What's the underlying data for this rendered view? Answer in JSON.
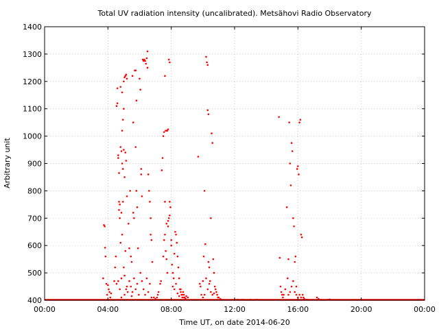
{
  "chart_data": {
    "type": "scatter",
    "title": "Total UV radiation intensity (uncalibrated). Metsähovi Radio Observatory",
    "xlabel": "Time UT, on date 2014-06-20",
    "ylabel": "Arbitrary unit",
    "xlim": [
      0,
      24
    ],
    "ylim": [
      400,
      1400
    ],
    "xticks": [
      0,
      4,
      8,
      12,
      16,
      20,
      24
    ],
    "xtick_labels": [
      "00:00",
      "04:00",
      "08:00",
      "12:00",
      "16:00",
      "20:00",
      "00:00"
    ],
    "yticks": [
      400,
      500,
      600,
      700,
      800,
      900,
      1000,
      1100,
      1200,
      1300,
      1400
    ],
    "ytick_labels": [
      "400",
      "500",
      "600",
      "700",
      "800",
      "900",
      "1000",
      "1100",
      "1200",
      "1300",
      "1400"
    ],
    "grid": true,
    "legend": false,
    "marker_color": "#ff0000",
    "baseline": {
      "value": 400,
      "x_range": [
        0,
        24
      ]
    },
    "points": [
      [
        3.75,
        675
      ],
      [
        3.8,
        670
      ],
      [
        3.82,
        592
      ],
      [
        3.85,
        560
      ],
      [
        3.7,
        480
      ],
      [
        3.9,
        460
      ],
      [
        4.0,
        455
      ],
      [
        4.05,
        440
      ],
      [
        4.1,
        430
      ],
      [
        4.2,
        425
      ],
      [
        3.95,
        420
      ],
      [
        4.15,
        410
      ],
      [
        4.4,
        470
      ],
      [
        4.45,
        520
      ],
      [
        4.5,
        560
      ],
      [
        4.55,
        1110
      ],
      [
        4.6,
        1120
      ],
      [
        4.6,
        1175
      ],
      [
        4.65,
        930
      ],
      [
        4.65,
        920
      ],
      [
        4.7,
        865
      ],
      [
        4.7,
        760
      ],
      [
        4.7,
        730
      ],
      [
        4.75,
        750
      ],
      [
        4.75,
        700
      ],
      [
        4.8,
        1180
      ],
      [
        4.8,
        960
      ],
      [
        4.8,
        610
      ],
      [
        4.85,
        945
      ],
      [
        4.85,
        720
      ],
      [
        4.9,
        1160
      ],
      [
        4.9,
        1020
      ],
      [
        4.9,
        900
      ],
      [
        4.9,
        640
      ],
      [
        4.95,
        1060
      ],
      [
        4.95,
        880
      ],
      [
        4.95,
        760
      ],
      [
        5.0,
        1200
      ],
      [
        5.0,
        1100
      ],
      [
        5.0,
        950
      ],
      [
        5.0,
        520
      ],
      [
        5.05,
        1215
      ],
      [
        5.05,
        850
      ],
      [
        5.05,
        490
      ],
      [
        5.1,
        1220
      ],
      [
        5.1,
        940
      ],
      [
        5.1,
        580
      ],
      [
        5.15,
        1225
      ],
      [
        5.15,
        910
      ],
      [
        5.2,
        1210
      ],
      [
        5.2,
        780
      ],
      [
        5.2,
        450
      ],
      [
        5.3,
        680
      ],
      [
        5.35,
        590
      ],
      [
        5.4,
        800
      ],
      [
        5.45,
        560
      ],
      [
        5.5,
        540
      ],
      [
        5.55,
        1220
      ],
      [
        5.6,
        1050
      ],
      [
        5.6,
        720
      ],
      [
        5.65,
        700
      ],
      [
        5.7,
        1240
      ],
      [
        5.75,
        1240
      ],
      [
        5.75,
        960
      ],
      [
        5.8,
        1130
      ],
      [
        5.8,
        800
      ],
      [
        5.85,
        740
      ],
      [
        5.9,
        590
      ],
      [
        6.0,
        1210
      ],
      [
        6.05,
        1170
      ],
      [
        6.1,
        880
      ],
      [
        6.1,
        860
      ],
      [
        6.15,
        780
      ],
      [
        6.2,
        1280
      ],
      [
        6.25,
        1275
      ],
      [
        6.3,
        1280
      ],
      [
        6.35,
        1275
      ],
      [
        6.4,
        1265
      ],
      [
        6.45,
        1285
      ],
      [
        6.5,
        1310
      ],
      [
        6.5,
        1250
      ],
      [
        6.55,
        860
      ],
      [
        6.6,
        800
      ],
      [
        6.65,
        760
      ],
      [
        6.7,
        700
      ],
      [
        6.7,
        640
      ],
      [
        6.75,
        620
      ],
      [
        6.8,
        540
      ],
      [
        4.55,
        460
      ],
      [
        4.65,
        470
      ],
      [
        4.75,
        440
      ],
      [
        4.85,
        480
      ],
      [
        5.05,
        420
      ],
      [
        5.25,
        430
      ],
      [
        5.35,
        470
      ],
      [
        5.45,
        450
      ],
      [
        5.55,
        430
      ],
      [
        5.65,
        480
      ],
      [
        5.75,
        440
      ],
      [
        5.85,
        460
      ],
      [
        5.95,
        420
      ],
      [
        6.05,
        500
      ],
      [
        6.15,
        470
      ],
      [
        6.25,
        440
      ],
      [
        6.35,
        420
      ],
      [
        6.45,
        480
      ],
      [
        6.55,
        430
      ],
      [
        6.65,
        460
      ],
      [
        6.75,
        410
      ],
      [
        4.85,
        410
      ],
      [
        5.15,
        440
      ],
      [
        5.5,
        415
      ],
      [
        6.9,
        410
      ],
      [
        7.0,
        405
      ],
      [
        7.1,
        410
      ],
      [
        7.15,
        420
      ],
      [
        7.2,
        430
      ],
      [
        7.3,
        460
      ],
      [
        7.35,
        470
      ],
      [
        7.4,
        875
      ],
      [
        7.45,
        920
      ],
      [
        7.5,
        1000
      ],
      [
        7.55,
        1015
      ],
      [
        7.6,
        1220
      ],
      [
        7.65,
        1020
      ],
      [
        7.7,
        1020
      ],
      [
        7.75,
        1020
      ],
      [
        7.8,
        1025
      ],
      [
        7.85,
        1280
      ],
      [
        7.9,
        1270
      ],
      [
        7.5,
        560
      ],
      [
        7.55,
        620
      ],
      [
        7.6,
        640
      ],
      [
        7.65,
        580
      ],
      [
        7.7,
        550
      ],
      [
        7.75,
        500
      ],
      [
        7.8,
        690
      ],
      [
        7.85,
        700
      ],
      [
        7.9,
        760
      ],
      [
        7.95,
        740
      ],
      [
        8.0,
        600
      ],
      [
        8.05,
        530
      ],
      [
        8.1,
        500
      ],
      [
        8.15,
        480
      ],
      [
        8.2,
        570
      ],
      [
        8.25,
        650
      ],
      [
        8.3,
        640
      ],
      [
        8.35,
        610
      ],
      [
        8.4,
        560
      ],
      [
        8.45,
        520
      ],
      [
        8.5,
        480
      ],
      [
        8.55,
        440
      ],
      [
        8.6,
        430
      ],
      [
        8.65,
        420
      ],
      [
        8.7,
        410
      ],
      [
        8.75,
        430
      ],
      [
        8.8,
        420
      ],
      [
        8.85,
        410
      ],
      [
        8.9,
        405
      ],
      [
        7.6,
        760
      ],
      [
        7.7,
        680
      ],
      [
        7.8,
        670
      ],
      [
        7.9,
        710
      ],
      [
        8.0,
        620
      ],
      [
        8.1,
        450
      ],
      [
        8.2,
        440
      ],
      [
        8.3,
        460
      ],
      [
        8.4,
        425
      ],
      [
        8.5,
        415
      ],
      [
        8.6,
        440
      ],
      [
        8.7,
        420
      ],
      [
        8.8,
        410
      ],
      [
        8.95,
        415
      ],
      [
        9.05,
        410
      ],
      [
        9.7,
        925
      ],
      [
        9.8,
        460
      ],
      [
        9.85,
        450
      ],
      [
        9.9,
        420
      ],
      [
        10.0,
        470
      ],
      [
        10.05,
        560
      ],
      [
        10.1,
        800
      ],
      [
        10.15,
        605
      ],
      [
        10.2,
        1290
      ],
      [
        10.25,
        1270
      ],
      [
        10.3,
        1260
      ],
      [
        10.3,
        1095
      ],
      [
        10.35,
        1080
      ],
      [
        10.35,
        540
      ],
      [
        10.4,
        520
      ],
      [
        10.45,
        470
      ],
      [
        10.5,
        700
      ],
      [
        10.55,
        1010
      ],
      [
        10.6,
        975
      ],
      [
        10.65,
        550
      ],
      [
        10.7,
        500
      ],
      [
        10.75,
        450
      ],
      [
        10.8,
        440
      ],
      [
        10.85,
        430
      ],
      [
        10.9,
        420
      ],
      [
        10.95,
        410
      ],
      [
        11.0,
        410
      ],
      [
        11.1,
        405
      ],
      [
        10.3,
        440
      ],
      [
        10.4,
        460
      ],
      [
        10.5,
        430
      ],
      [
        10.6,
        420
      ],
      [
        10.7,
        425
      ],
      [
        10.2,
        480
      ],
      [
        10.1,
        420
      ],
      [
        10.0,
        410
      ],
      [
        12.2,
        402
      ],
      [
        12.5,
        402
      ],
      [
        13.0,
        402
      ],
      [
        13.4,
        402
      ],
      [
        14.8,
        1070
      ],
      [
        14.85,
        555
      ],
      [
        14.9,
        450
      ],
      [
        14.95,
        430
      ],
      [
        15.0,
        420
      ],
      [
        15.05,
        410
      ],
      [
        15.1,
        420
      ],
      [
        15.2,
        440
      ],
      [
        15.3,
        740
      ],
      [
        15.35,
        480
      ],
      [
        15.4,
        550
      ],
      [
        15.45,
        1050
      ],
      [
        15.5,
        900
      ],
      [
        15.55,
        820
      ],
      [
        15.6,
        975
      ],
      [
        15.65,
        945
      ],
      [
        15.7,
        700
      ],
      [
        15.75,
        670
      ],
      [
        15.8,
        540
      ],
      [
        15.85,
        560
      ],
      [
        15.9,
        450
      ],
      [
        15.95,
        880
      ],
      [
        16.0,
        890
      ],
      [
        16.05,
        860
      ],
      [
        16.1,
        1050
      ],
      [
        16.15,
        1060
      ],
      [
        16.2,
        640
      ],
      [
        16.25,
        630
      ],
      [
        16.3,
        420
      ],
      [
        16.35,
        410
      ],
      [
        15.4,
        420
      ],
      [
        15.5,
        430
      ],
      [
        15.6,
        450
      ],
      [
        15.7,
        470
      ],
      [
        15.8,
        430
      ],
      [
        15.9,
        420
      ],
      [
        16.0,
        410
      ],
      [
        16.1,
        420
      ],
      [
        16.2,
        410
      ],
      [
        16.4,
        405
      ],
      [
        16.6,
        402
      ],
      [
        17.2,
        410
      ],
      [
        17.3,
        405
      ],
      [
        17.9,
        402
      ],
      [
        18.0,
        403
      ]
    ]
  }
}
